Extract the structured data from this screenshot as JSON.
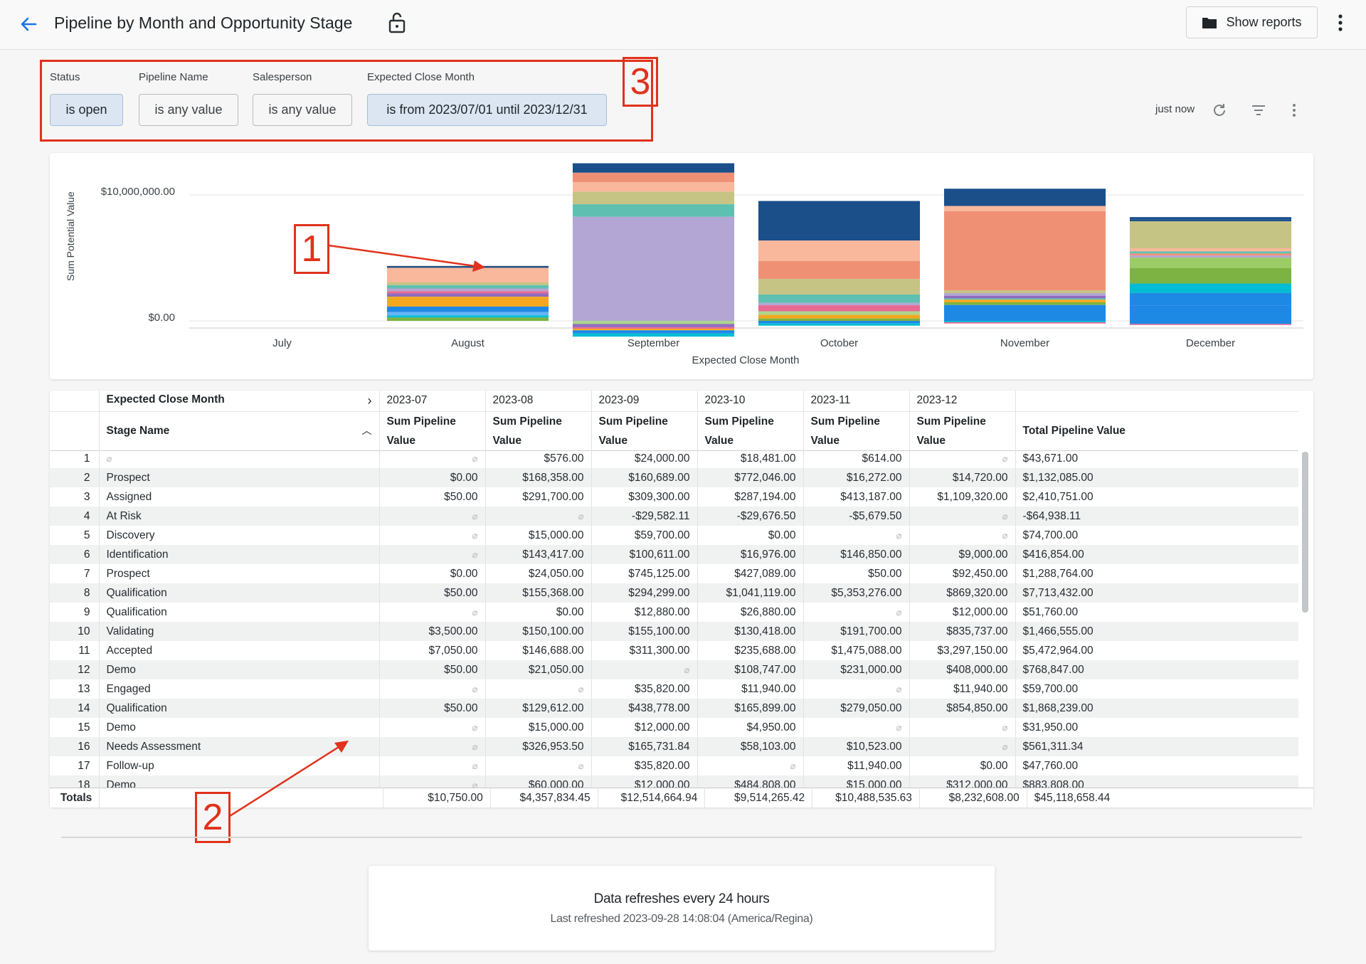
{
  "header": {
    "title": "Pipeline by Month and Opportunity Stage",
    "show_reports_label": "Show reports"
  },
  "filters": [
    {
      "label": "Status",
      "value": "is open",
      "active": true
    },
    {
      "label": "Pipeline Name",
      "value": "is any value",
      "active": false
    },
    {
      "label": "Salesperson",
      "value": "is any value",
      "active": false
    },
    {
      "label": "Expected Close Month",
      "value": "is from 2023/07/01 until 2023/12/31",
      "active": true
    }
  ],
  "toolbar": {
    "updated": "just now"
  },
  "annotations": {
    "n1": "1",
    "n2": "2",
    "n3": "3"
  },
  "chart_data": {
    "type": "bar",
    "stacked": true,
    "xlabel": "Expected Close Month",
    "ylabel": "Sum Potential Value",
    "y_ticks": [
      "$10,000,000.00",
      "$0.00"
    ],
    "ylim": [
      0,
      12500000
    ],
    "categories": [
      "July",
      "August",
      "September",
      "October",
      "November",
      "December"
    ],
    "totals": [
      10750,
      4357834.45,
      12514664.94,
      9514265.42,
      10488535.63,
      8232608.0
    ],
    "segment_colors": [
      "#f9b79c",
      "#ef9075",
      "#c6c484",
      "#5fbfb1",
      "#b3a6d4",
      "#aed58d",
      "#f3a81f",
      "#1e88e5",
      "#00bcd4",
      "#7cb342",
      "#1a4f8a",
      "#e86a92",
      "#8e6bbf",
      "#9ccc65",
      "#f06292",
      "#5c6bc0"
    ]
  },
  "table": {
    "pivot_label": "Expected Close Month",
    "row_header": "Stage Name",
    "months": [
      "2023-07",
      "2023-08",
      "2023-09",
      "2023-10",
      "2023-11",
      "2023-12"
    ],
    "measure_label": "Sum Pipeline Value",
    "total_label": "Total Pipeline Value",
    "null_glyph": "⌀",
    "rows": [
      {
        "n": "1",
        "stage": "⌀",
        "v": [
          "⌀",
          "$576.00",
          "$24,000.00",
          "$18,481.00",
          "$614.00",
          "⌀"
        ],
        "total": "$43,671.00"
      },
      {
        "n": "2",
        "stage": "Prospect",
        "v": [
          "$0.00",
          "$168,358.00",
          "$160,689.00",
          "$772,046.00",
          "$16,272.00",
          "$14,720.00"
        ],
        "total": "$1,132,085.00"
      },
      {
        "n": "3",
        "stage": "Assigned",
        "v": [
          "$50.00",
          "$291,700.00",
          "$309,300.00",
          "$287,194.00",
          "$413,187.00",
          "$1,109,320.00"
        ],
        "total": "$2,410,751.00"
      },
      {
        "n": "4",
        "stage": "At Risk",
        "v": [
          "⌀",
          "⌀",
          "-$29,582.11",
          "-$29,676.50",
          "-$5,679.50",
          "⌀"
        ],
        "total": "-$64,938.11"
      },
      {
        "n": "5",
        "stage": "Discovery",
        "v": [
          "⌀",
          "$15,000.00",
          "$59,700.00",
          "$0.00",
          "⌀",
          "⌀"
        ],
        "total": "$74,700.00"
      },
      {
        "n": "6",
        "stage": "Identification",
        "v": [
          "⌀",
          "$143,417.00",
          "$100,611.00",
          "$16,976.00",
          "$146,850.00",
          "$9,000.00"
        ],
        "total": "$416,854.00"
      },
      {
        "n": "7",
        "stage": "Prospect",
        "v": [
          "$0.00",
          "$24,050.00",
          "$745,125.00",
          "$427,089.00",
          "$50.00",
          "$92,450.00"
        ],
        "total": "$1,288,764.00"
      },
      {
        "n": "8",
        "stage": "Qualification",
        "v": [
          "$50.00",
          "$155,368.00",
          "$294,299.00",
          "$1,041,119.00",
          "$5,353,276.00",
          "$869,320.00"
        ],
        "total": "$7,713,432.00"
      },
      {
        "n": "9",
        "stage": "Qualification",
        "v": [
          "⌀",
          "$0.00",
          "$12,880.00",
          "$26,880.00",
          "⌀",
          "$12,000.00"
        ],
        "total": "$51,760.00"
      },
      {
        "n": "10",
        "stage": "Validating",
        "v": [
          "$3,500.00",
          "$150,100.00",
          "$155,100.00",
          "$130,418.00",
          "$191,700.00",
          "$835,737.00"
        ],
        "total": "$1,466,555.00"
      },
      {
        "n": "11",
        "stage": "Accepted",
        "v": [
          "$7,050.00",
          "$146,688.00",
          "$311,300.00",
          "$235,688.00",
          "$1,475,088.00",
          "$3,297,150.00"
        ],
        "total": "$5,472,964.00"
      },
      {
        "n": "12",
        "stage": "Demo",
        "v": [
          "$50.00",
          "$21,050.00",
          "⌀",
          "$108,747.00",
          "$231,000.00",
          "$408,000.00"
        ],
        "total": "$768,847.00"
      },
      {
        "n": "13",
        "stage": "Engaged",
        "v": [
          "⌀",
          "⌀",
          "$35,820.00",
          "$11,940.00",
          "⌀",
          "$11,940.00"
        ],
        "total": "$59,700.00"
      },
      {
        "n": "14",
        "stage": "Qualification",
        "v": [
          "$50.00",
          "$129,612.00",
          "$438,778.00",
          "$165,899.00",
          "$279,050.00",
          "$854,850.00"
        ],
        "total": "$1,868,239.00"
      },
      {
        "n": "15",
        "stage": "Demo",
        "v": [
          "⌀",
          "$15,000.00",
          "$12,000.00",
          "$4,950.00",
          "⌀",
          "⌀"
        ],
        "total": "$31,950.00"
      },
      {
        "n": "16",
        "stage": "Needs Assessment",
        "v": [
          "⌀",
          "$326,953.50",
          "$165,731.84",
          "$58,103.00",
          "$10,523.00",
          "⌀"
        ],
        "total": "$561,311.34"
      },
      {
        "n": "17",
        "stage": "Follow-up",
        "v": [
          "⌀",
          "⌀",
          "$35,820.00",
          "⌀",
          "$11,940.00",
          "$0.00"
        ],
        "total": "$47,760.00"
      },
      {
        "n": "18",
        "stage": "Demo",
        "v": [
          "⌀",
          "$60,000.00",
          "$12,000.00",
          "$484,808.00",
          "$15,000.00",
          "$312,000.00"
        ],
        "total": "$883,808.00"
      }
    ],
    "totals_label": "Totals",
    "totals": [
      "$10,750.00",
      "$4,357,834.45",
      "$12,514,664.94",
      "$9,514,265.42",
      "$10,488,535.63",
      "$8,232,608.00"
    ],
    "grand_total": "$45,118,658.44"
  },
  "refresh": {
    "title": "Data refreshes every 24 hours",
    "subtitle": "Last refreshed 2023-09-28 14:08:04 (America/Regina)"
  }
}
